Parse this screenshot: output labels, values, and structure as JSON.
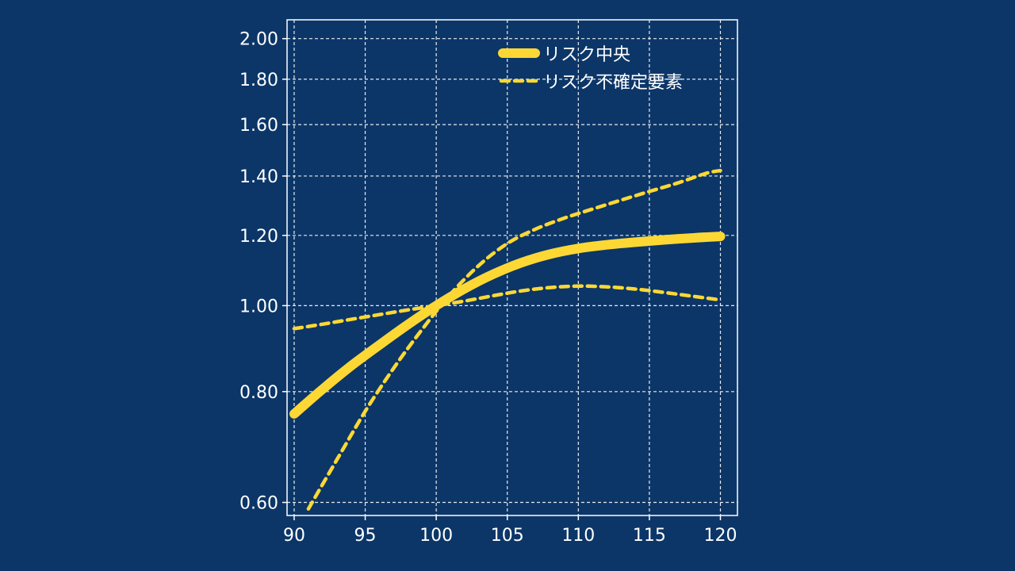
{
  "colors": {
    "background": "#0c3668",
    "series": "#fdd835",
    "axes": "#ffffff",
    "grid": "#ffffff"
  },
  "chart_data": {
    "type": "line",
    "title": "",
    "xlabel": "",
    "ylabel": "",
    "y_scale": "log",
    "xlim": [
      89.5,
      121.2
    ],
    "ylim": [
      0.58,
      2.1
    ],
    "x_ticks": [
      90,
      95,
      100,
      105,
      110,
      115,
      120
    ],
    "x_tick_labels": [
      "90",
      "95",
      "100",
      "105",
      "110",
      "115",
      "120"
    ],
    "y_ticks": [
      0.6,
      0.8,
      1.0,
      1.2,
      1.4,
      1.6,
      1.8,
      2.0
    ],
    "y_tick_labels": [
      "0.60",
      "0.80",
      "1.00",
      "1.20",
      "1.40",
      "1.60",
      "1.80",
      "2.00"
    ],
    "grid": true,
    "grid_style": "dashed",
    "legend_position": "top-right",
    "legend": [
      {
        "label": "リスク中央",
        "style": "solid"
      },
      {
        "label": "リスク不確定要素",
        "style": "dashed"
      }
    ],
    "series": [
      {
        "name": "リスク中央",
        "style": "solid",
        "x": [
          90,
          92,
          94,
          96,
          98,
          100,
          102,
          104,
          106,
          108,
          110,
          112,
          114,
          116,
          118,
          120
        ],
        "y": [
          0.755,
          0.805,
          0.855,
          0.903,
          0.952,
          1.0,
          1.045,
          1.085,
          1.118,
          1.143,
          1.16,
          1.171,
          1.179,
          1.186,
          1.192,
          1.197
        ]
      },
      {
        "name": "リスク不確定要素 (上)",
        "style": "dashed",
        "x": [
          91,
          93,
          95,
          97,
          99,
          101,
          103,
          105,
          107,
          109,
          111,
          113,
          115,
          117,
          119,
          120
        ],
        "y": [
          0.59,
          0.67,
          0.76,
          0.85,
          0.94,
          1.03,
          1.11,
          1.175,
          1.22,
          1.255,
          1.285,
          1.315,
          1.345,
          1.375,
          1.41,
          1.42
        ]
      },
      {
        "name": "リスク不確定要素 (下)",
        "style": "dashed",
        "x": [
          90,
          92,
          94,
          96,
          98,
          100,
          102,
          104,
          106,
          108,
          110,
          112,
          114,
          116,
          118,
          120
        ],
        "y": [
          0.942,
          0.953,
          0.965,
          0.977,
          0.989,
          1.0,
          1.012,
          1.026,
          1.039,
          1.048,
          1.052,
          1.05,
          1.044,
          1.035,
          1.025,
          1.015
        ]
      }
    ]
  }
}
